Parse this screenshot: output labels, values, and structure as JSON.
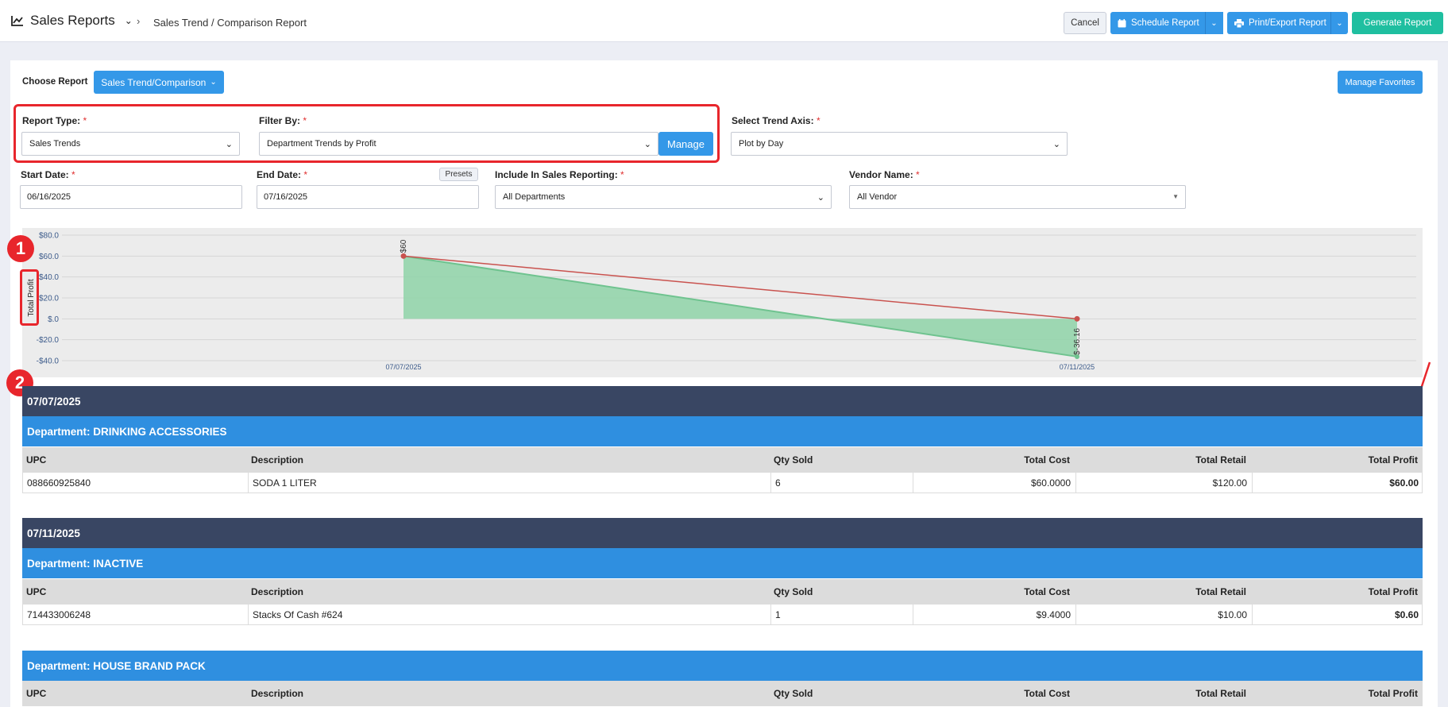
{
  "header": {
    "title": "Sales Reports",
    "breadcrumb": "Sales Trend / Comparison Report",
    "cancel": "Cancel",
    "schedule": "Schedule Report",
    "print": "Print/Export Report",
    "generate": "Generate Report"
  },
  "controls": {
    "choose_report_label": "Choose Report",
    "choose_report_value": "Sales Trend/Comparison",
    "manage_favorites": "Manage Favorites",
    "report_type_label": "Report Type:",
    "report_type_value": "Sales Trends",
    "filter_by_label": "Filter By:",
    "filter_by_value": "Department Trends by Profit",
    "manage": "Manage",
    "trend_axis_label": "Select Trend Axis:",
    "trend_axis_value": "Plot by Day",
    "start_date_label": "Start Date:",
    "start_date_value": "06/16/2025",
    "end_date_label": "End Date:",
    "end_date_value": "07/16/2025",
    "presets": "Presets",
    "include_label": "Include In Sales Reporting:",
    "include_value": "All Departments",
    "vendor_label": "Vendor Name:",
    "vendor_value": "All Vendor",
    "required_mark": "*"
  },
  "annotations": {
    "callout_1": "1",
    "callout_2": "2"
  },
  "colors": {
    "annotation_red": "#e8262c",
    "date_band": "#394663",
    "dept_band": "#2f8fe0",
    "area_fill": "#8fd3a8",
    "line": "#c9524e"
  },
  "chart_data": {
    "type": "line",
    "ylabel": "Total Profit",
    "ylim": [
      -40,
      80
    ],
    "yticks": [
      80,
      60,
      40,
      20,
      0,
      -20,
      -40
    ],
    "ytick_labels": [
      "$80.0",
      "$60.0",
      "$40.0",
      "$20.0",
      "$.0",
      "-$20.0",
      "-$40.0"
    ],
    "categories": [
      "07/07/2025",
      "07/11/2025"
    ],
    "series": [
      {
        "values": [
          60,
          0
        ],
        "color": "#c9524e"
      },
      {
        "values": [
          60,
          -36.16
        ],
        "color": "#8fd3a8",
        "fill": true
      }
    ],
    "data_labels": [
      "$60",
      "$-36.16"
    ],
    "grid": true
  },
  "table": {
    "columns": [
      "UPC",
      "Description",
      "Qty Sold",
      "Total Cost",
      "Total Retail",
      "Total Profit"
    ],
    "groups": [
      {
        "date": "07/07/2025",
        "departments": [
          {
            "name": "Department: DRINKING ACCESSORIES",
            "rows": [
              [
                "088660925840",
                "SODA 1 LITER",
                "6",
                "$60.0000",
                "$120.00",
                "$60.00"
              ]
            ]
          }
        ]
      },
      {
        "date": "07/11/2025",
        "departments": [
          {
            "name": "Department: INACTIVE",
            "rows": [
              [
                "714433006248",
                "Stacks Of Cash #624",
                "1",
                "$9.4000",
                "$10.00",
                "$0.60"
              ]
            ]
          },
          {
            "name": "Department: HOUSE BRAND PACK",
            "rows": []
          }
        ]
      }
    ]
  }
}
